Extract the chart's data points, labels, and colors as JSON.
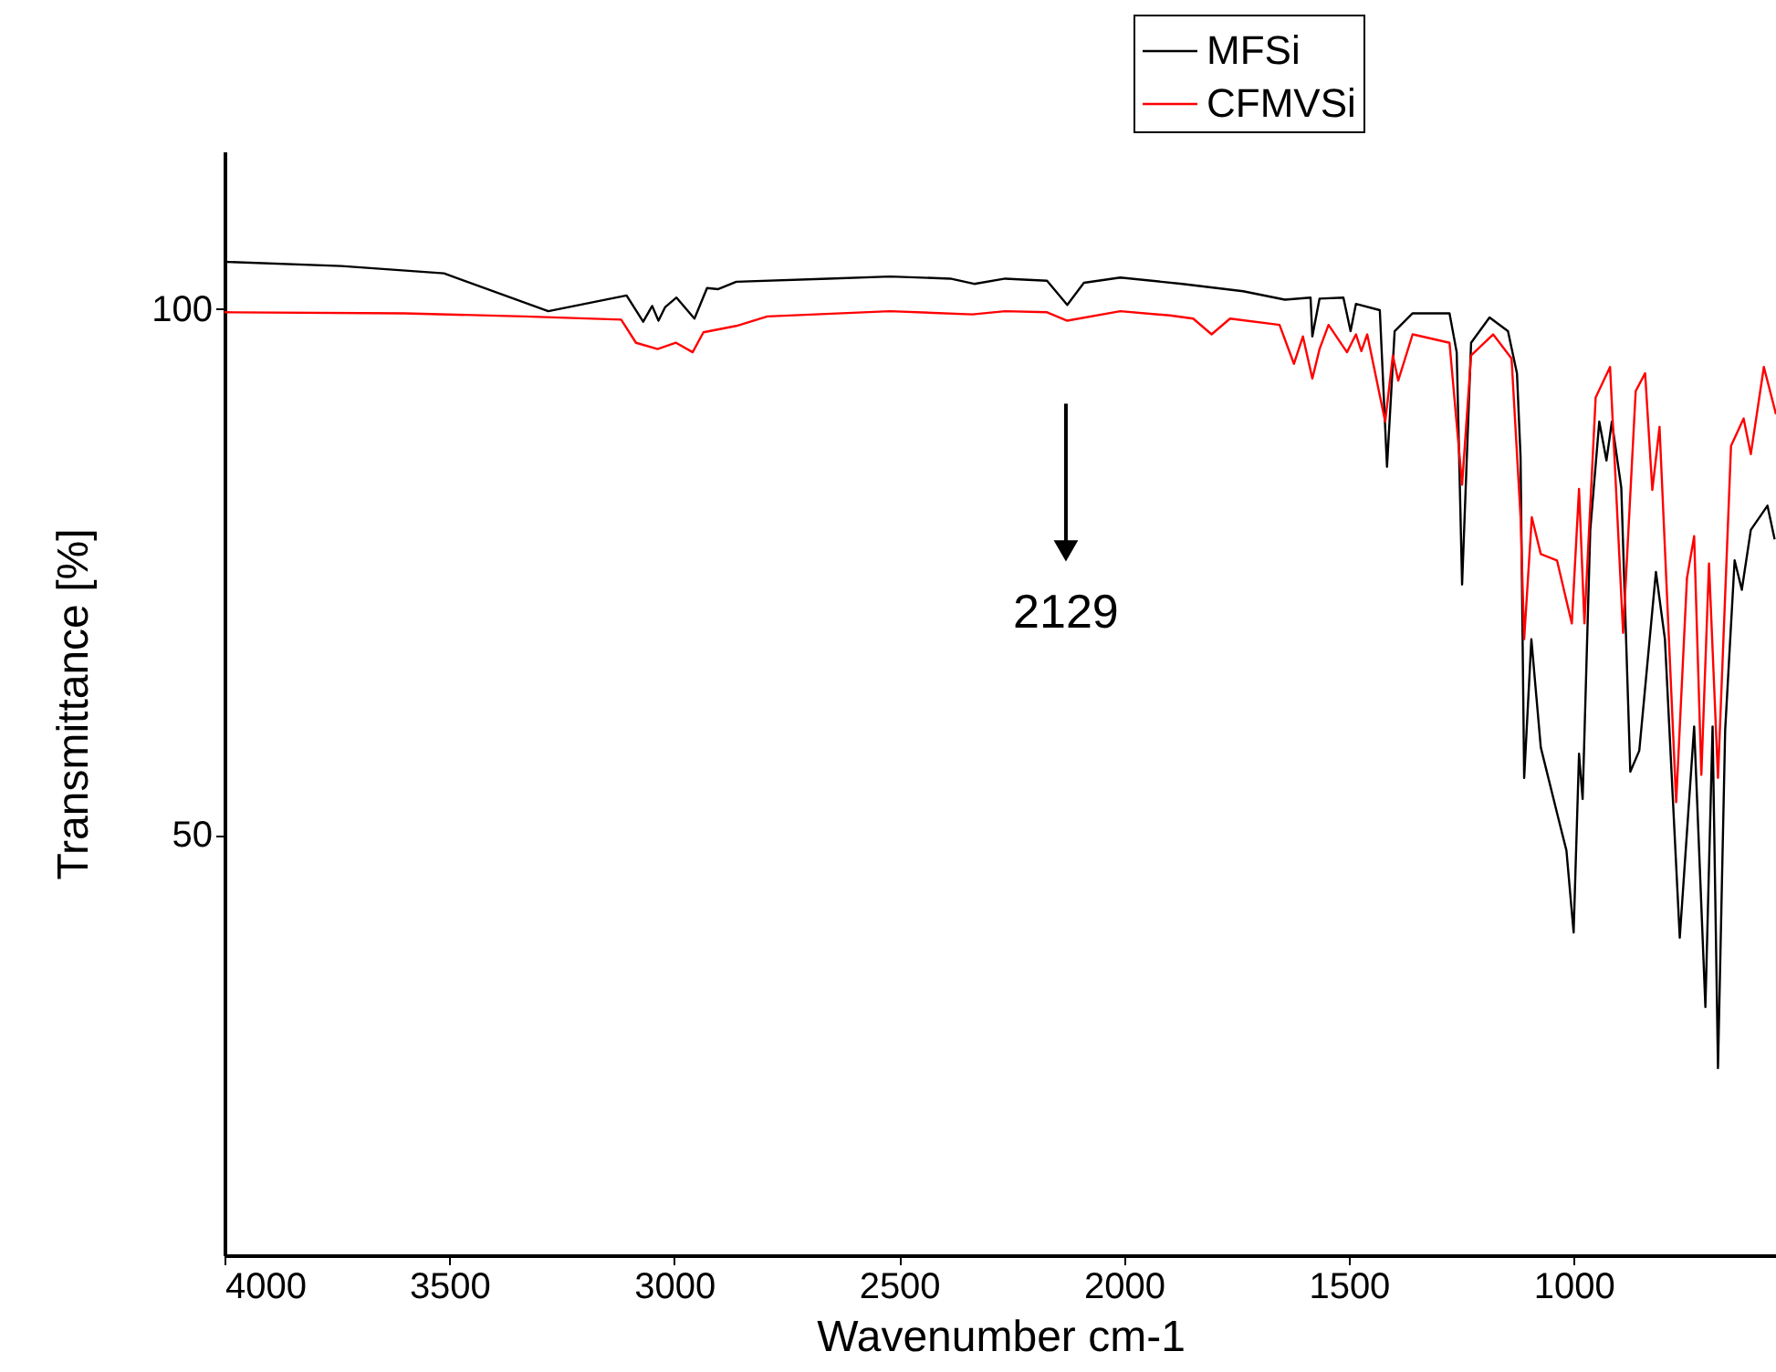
{
  "chart_data": {
    "type": "line",
    "xlabel": "Wavenumber cm-1",
    "ylabel": "Transmittance [%]",
    "xlim": [
      4000,
      550
    ],
    "xticks": [
      4000,
      3500,
      3000,
      2500,
      2000,
      1500,
      1000
    ],
    "ylim": [
      10,
      115
    ],
    "yticks": [
      50,
      100
    ],
    "grid": false,
    "legend": "top right",
    "line_style": "solid",
    "marker": "none",
    "annotations": [
      {
        "text": "2129",
        "x": 2129,
        "y": 77
      }
    ],
    "series": [
      {
        "name": "MFSi",
        "color": "#000000",
        "x": [
          4000,
          3740,
          3512,
          3280,
          3106,
          3069,
          3049,
          3035,
          3020,
          2995,
          2955,
          2927,
          2902,
          2862,
          2658,
          2520,
          2386,
          2333,
          2264,
          2171,
          2126,
          2089,
          2008,
          1870,
          1735,
          1642,
          1585,
          1581,
          1565,
          1512,
          1496,
          1484,
          1431,
          1415,
          1398,
          1358,
          1276,
          1260,
          1248,
          1228,
          1187,
          1146,
          1126,
          1118,
          1110,
          1094,
          1073,
          1033,
          1016,
          1000,
          988,
          980,
          963,
          943,
          927,
          915,
          894,
          874,
          854,
          817,
          797,
          764,
          732,
          707,
          691,
          679,
          663,
          642,
          626,
          606,
          569,
          553
        ],
        "values": [
          104.5,
          104.1,
          103.4,
          99.8,
          101.3,
          98.8,
          100.3,
          98.9,
          100.2,
          101.1,
          99.1,
          102,
          101.9,
          102.6,
          102.9,
          103.1,
          102.9,
          102.4,
          102.9,
          102.7,
          100.4,
          102.5,
          103,
          102.4,
          101.7,
          100.9,
          101.1,
          97.4,
          101,
          101.1,
          97.9,
          100.5,
          99.9,
          85,
          97.9,
          99.6,
          99.6,
          95.9,
          73.8,
          96.8,
          99.2,
          97.9,
          93.9,
          85.9,
          55.4,
          68.6,
          58.3,
          51.4,
          48.5,
          40.7,
          57.7,
          53.4,
          79,
          89.3,
          85.6,
          89.3,
          83,
          56,
          58,
          75,
          68.6,
          40.2,
          60.3,
          33.6,
          60.3,
          27.8,
          60,
          76.1,
          73.3,
          79,
          81.3,
          78.1
        ]
      },
      {
        "name": "CFMVSi",
        "color": "#ff0000",
        "x": [
          4000,
          3600,
          3333,
          3118,
          3085,
          3037,
          2996,
          2959,
          2935,
          2862,
          2793,
          2520,
          2337,
          2264,
          2171,
          2126,
          2008,
          1898,
          1846,
          1805,
          1764,
          1654,
          1622,
          1602,
          1581,
          1565,
          1545,
          1504,
          1484,
          1472,
          1459,
          1419,
          1402,
          1390,
          1358,
          1276,
          1248,
          1228,
          1179,
          1138,
          1118,
          1110,
          1093,
          1073,
          1037,
          1004,
          988,
          976,
          951,
          919,
          890,
          862,
          841,
          825,
          809,
          772,
          748,
          732,
          716,
          699,
          679,
          650,
          622,
          606,
          577,
          550
        ],
        "values": [
          99.7,
          99.6,
          99.3,
          99,
          96.8,
          96.2,
          96.8,
          95.9,
          97.8,
          98.4,
          99.3,
          99.8,
          99.5,
          99.8,
          99.7,
          98.9,
          99.8,
          99.4,
          99.1,
          97.6,
          99.1,
          98.5,
          94.8,
          97.4,
          93.4,
          96.2,
          98.5,
          95.9,
          97.6,
          96,
          97.6,
          89.3,
          95.6,
          93.2,
          97.6,
          96.8,
          83.3,
          95.6,
          97.6,
          95.3,
          80.2,
          68.6,
          80.2,
          76.7,
          76.1,
          70.1,
          82.9,
          70.1,
          91.6,
          94.5,
          69.2,
          92.2,
          93.9,
          82.8,
          88.8,
          53.1,
          74.4,
          78.4,
          55.7,
          75.8,
          55.4,
          87,
          89.6,
          86.2,
          94.5,
          90
        ]
      }
    ]
  }
}
